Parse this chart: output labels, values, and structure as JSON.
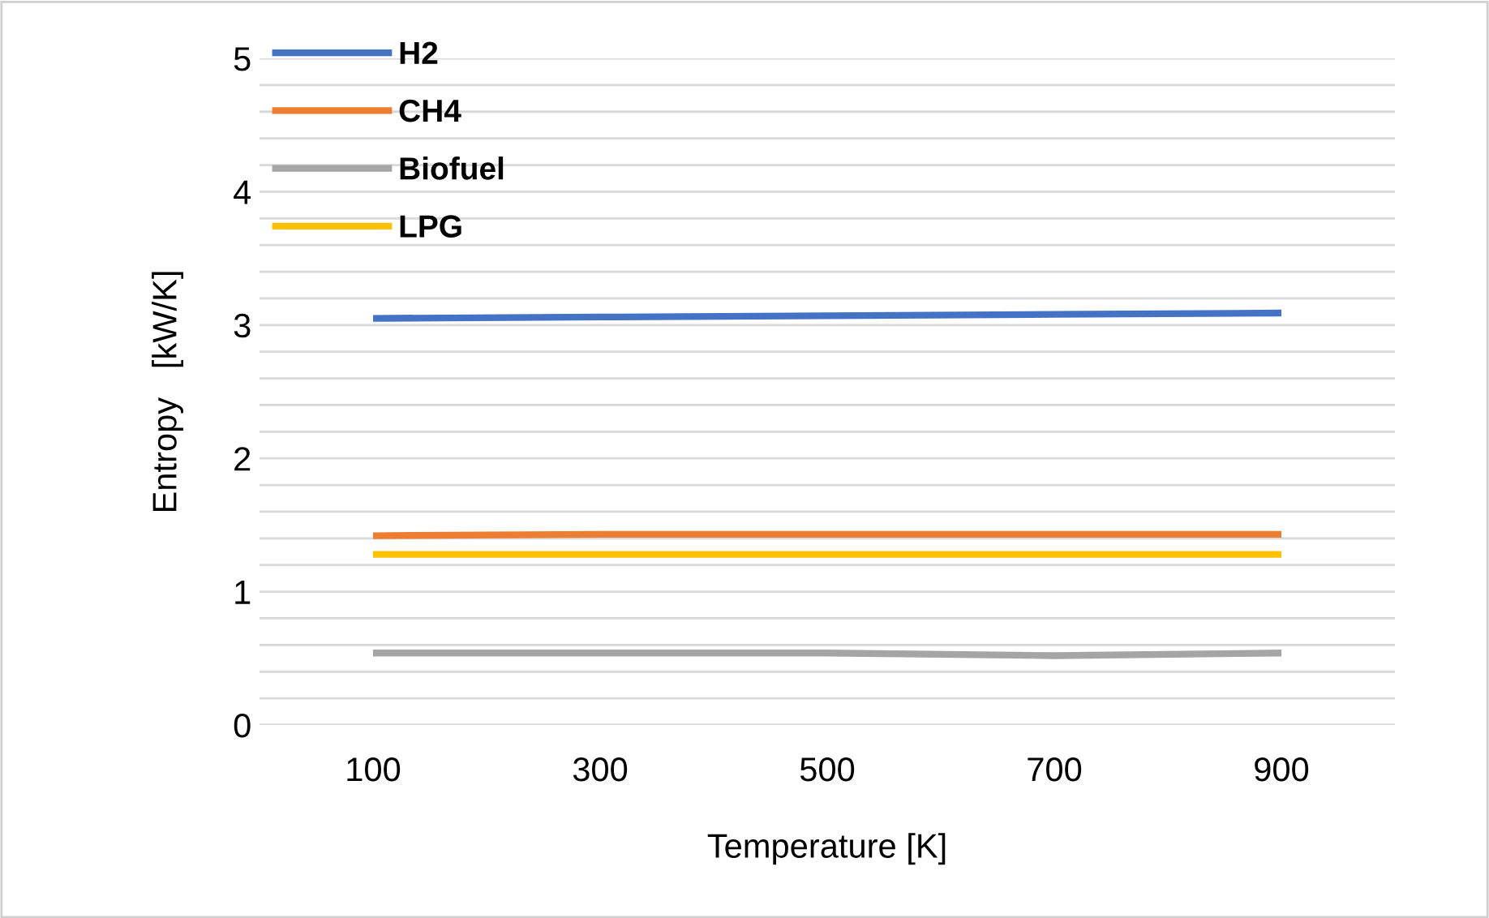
{
  "chart_data": {
    "type": "line",
    "xlabel": "Temperature [K]",
    "ylabel": "Entropy   [kW/K]",
    "categories": [
      "100",
      "300",
      "500",
      "700",
      "900"
    ],
    "series": [
      {
        "name": "H2",
        "color": "#4472c4",
        "values": [
          3.05,
          3.06,
          3.07,
          3.08,
          3.09
        ]
      },
      {
        "name": "CH4",
        "color": "#ed7d31",
        "values": [
          1.42,
          1.43,
          1.43,
          1.43,
          1.43
        ]
      },
      {
        "name": "Biofuel",
        "color": "#a5a5a5",
        "values": [
          0.54,
          0.54,
          0.54,
          0.52,
          0.54
        ]
      },
      {
        "name": "LPG",
        "color": "#ffc000",
        "values": [
          1.28,
          1.28,
          1.28,
          1.28,
          1.28
        ]
      }
    ],
    "ylim": [
      0,
      5
    ],
    "yticks": [
      0,
      {
        "value": 0.2,
        "label": null
      },
      {
        "value": 0.4,
        "label": null
      },
      {
        "value": 0.6,
        "label": null
      },
      {
        "value": 0.8,
        "label": null
      },
      1,
      {
        "value": 1.2,
        "label": null
      },
      {
        "value": 1.4,
        "label": null
      },
      {
        "value": 1.6,
        "label": null
      },
      {
        "value": 1.8,
        "label": null
      },
      2,
      {
        "value": 2.2,
        "label": null
      },
      {
        "value": 2.4,
        "label": null
      },
      {
        "value": 2.6,
        "label": null
      },
      {
        "value": 2.8,
        "label": null
      },
      3,
      {
        "value": 3.2,
        "label": null
      },
      {
        "value": 3.4,
        "label": null
      },
      {
        "value": 3.6,
        "label": null
      },
      {
        "value": 3.8,
        "label": null
      },
      4,
      {
        "value": 4.2,
        "label": null
      },
      {
        "value": 4.4,
        "label": null
      },
      {
        "value": 4.6,
        "label": null
      },
      {
        "value": 4.8,
        "label": null
      },
      5
    ],
    "grid": "y",
    "legend": "top left",
    "marker": "none",
    "line_style": "solid"
  }
}
